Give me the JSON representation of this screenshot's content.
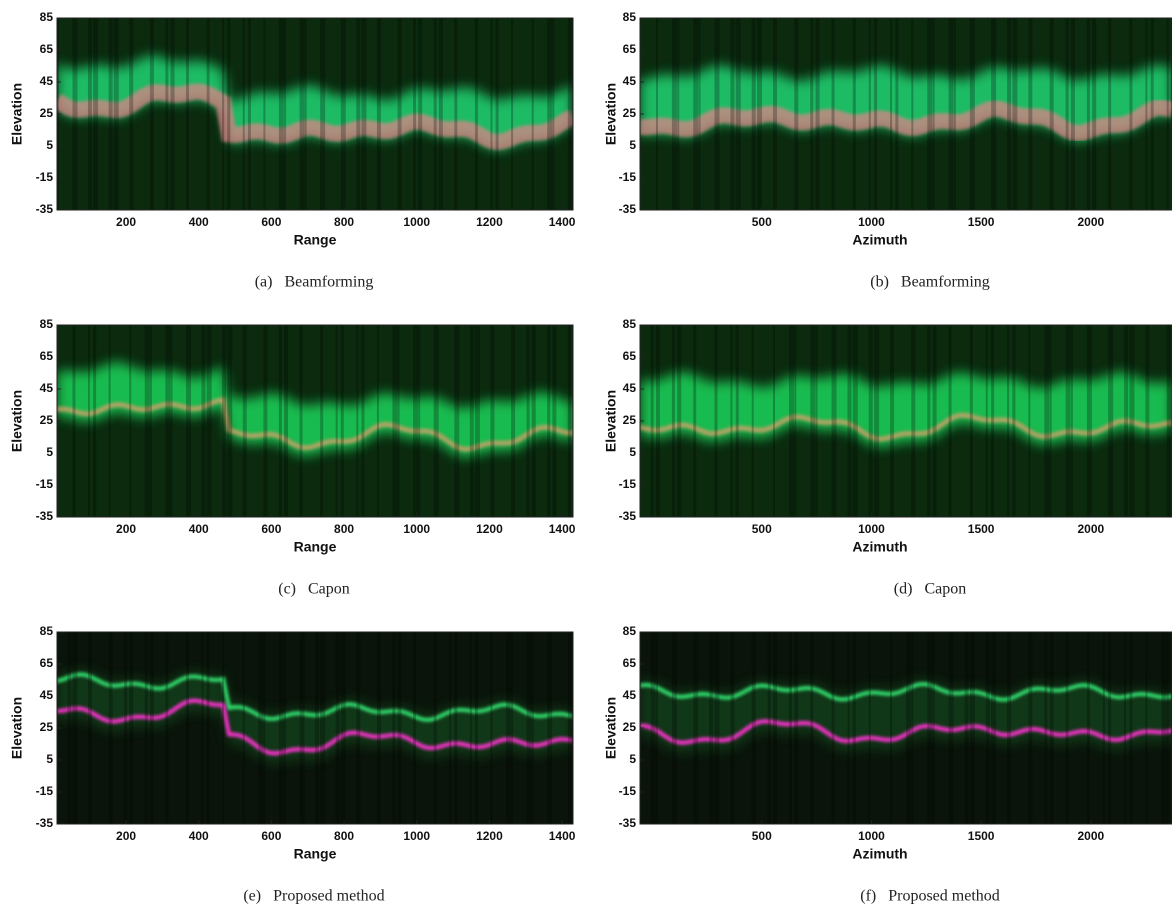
{
  "chart_data": [
    {
      "type": "image",
      "caption": "(a)   Beamforming",
      "xlabel": "Range",
      "ylabel": "Elevation",
      "xlim": [
        10,
        1430
      ],
      "ylim": [
        -35,
        85
      ],
      "xticks": [
        200,
        400,
        600,
        800,
        1000,
        1200,
        1400
      ],
      "yticks": [
        85,
        65,
        45,
        25,
        5,
        -15,
        -35
      ]
    },
    {
      "type": "image",
      "caption": "(b)   Beamforming",
      "xlabel": "Azimuth",
      "ylabel": "Elevation",
      "xlim": [
        -55,
        2370
      ],
      "ylim": [
        -35,
        85
      ],
      "xticks": [
        500,
        1000,
        1500,
        2000
      ],
      "yticks": [
        85,
        65,
        45,
        25,
        5,
        -15,
        -35
      ]
    },
    {
      "type": "image",
      "caption": "(c)   Capon",
      "xlabel": "Range",
      "ylabel": "Elevation",
      "xlim": [
        10,
        1430
      ],
      "ylim": [
        -35,
        85
      ],
      "xticks": [
        200,
        400,
        600,
        800,
        1000,
        1200,
        1400
      ],
      "yticks": [
        85,
        65,
        45,
        25,
        5,
        -15,
        -35
      ]
    },
    {
      "type": "image",
      "caption": "(d)   Capon",
      "xlabel": "Azimuth",
      "ylabel": "Elevation",
      "xlim": [
        -55,
        2370
      ],
      "ylim": [
        -35,
        85
      ],
      "xticks": [
        500,
        1000,
        1500,
        2000
      ],
      "yticks": [
        85,
        65,
        45,
        25,
        5,
        -15,
        -35
      ]
    },
    {
      "type": "image",
      "caption": "(e)   Proposed method",
      "xlabel": "Range",
      "ylabel": "Elevation",
      "xlim": [
        10,
        1430
      ],
      "ylim": [
        -35,
        85
      ],
      "xticks": [
        200,
        400,
        600,
        800,
        1000,
        1200,
        1400
      ],
      "yticks": [
        85,
        65,
        45,
        25,
        5,
        -15,
        -35
      ]
    },
    {
      "type": "image",
      "caption": "(f)   Proposed method",
      "xlabel": "Azimuth",
      "ylabel": "Elevation",
      "xlim": [
        -55,
        2370
      ],
      "ylim": [
        -35,
        85
      ],
      "xticks": [
        500,
        1000,
        1500,
        2000
      ],
      "yticks": [
        85,
        65,
        45,
        25,
        5,
        -15,
        -35
      ]
    }
  ]
}
